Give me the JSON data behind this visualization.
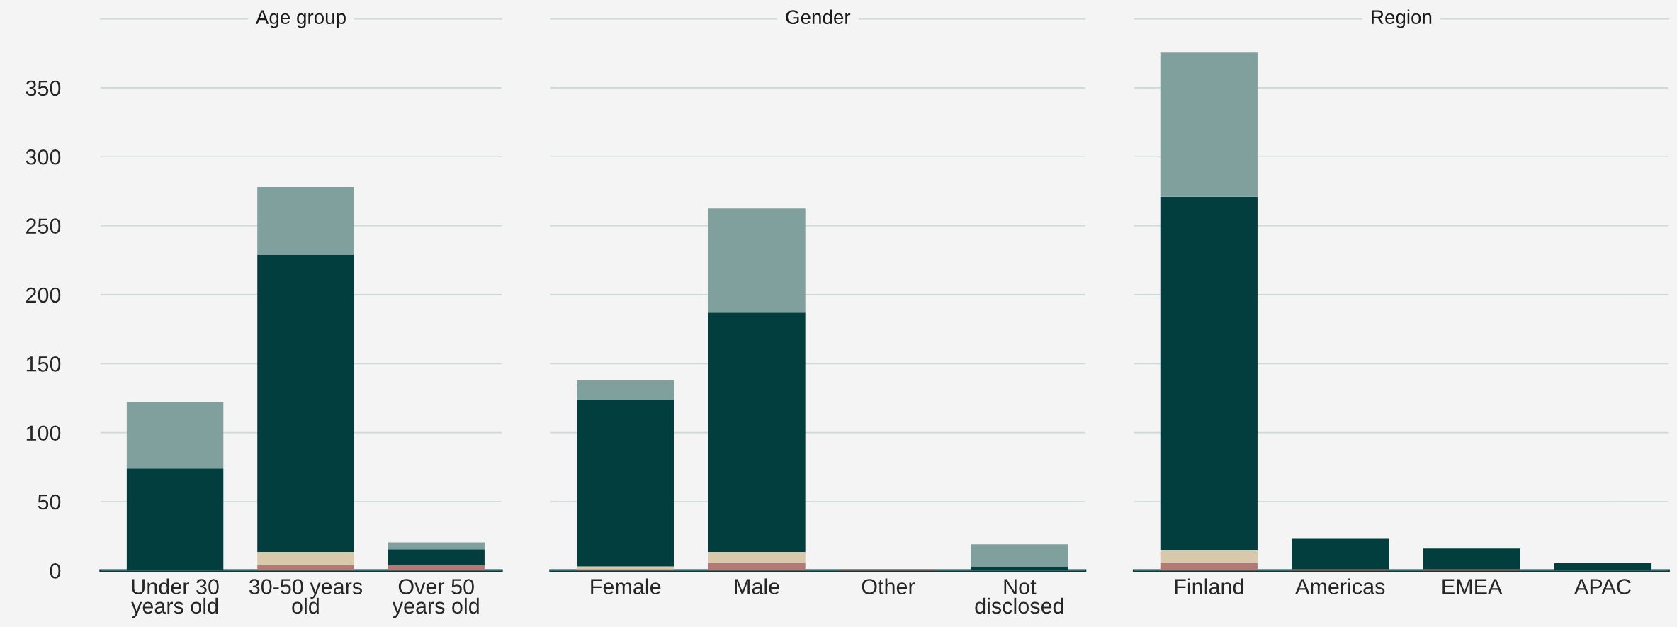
{
  "chart_data": [
    {
      "type": "bar",
      "title": "Age group",
      "categories": [
        "Under 30\nyears old",
        "30-50 years\nold",
        "Over 50\nyears old"
      ],
      "stacked": true,
      "grid": "y",
      "legend": false,
      "ylim": [
        0,
        400
      ],
      "yticks": [
        0,
        50,
        100,
        150,
        200,
        250,
        300,
        350
      ],
      "series": [
        {
          "color": "#b27a74",
          "values": [
            0,
            4,
            4
          ]
        },
        {
          "color": "#d9c9ab",
          "values": [
            0,
            9.5,
            0
          ]
        },
        {
          "color": "#033e3e",
          "values": [
            74,
            215.5,
            11.5
          ]
        },
        {
          "color": "#80a09e",
          "values": [
            48,
            49,
            5
          ]
        }
      ]
    },
    {
      "type": "bar",
      "title": "Gender",
      "categories": [
        "Female",
        "Male",
        "Other",
        "Not\ndisclosed"
      ],
      "stacked": true,
      "grid": "y",
      "legend": false,
      "tick_labels": "x",
      "ylim": [
        0,
        400
      ],
      "yticks": [
        0,
        50,
        100,
        150,
        200,
        250,
        300,
        350
      ],
      "series": [
        {
          "color": "#b27a74",
          "values": [
            1,
            6,
            1,
            0
          ]
        },
        {
          "color": "#d9c9ab",
          "values": [
            2,
            7.5,
            0,
            0
          ]
        },
        {
          "color": "#033e3e",
          "values": [
            121,
            173.5,
            0,
            3
          ]
        },
        {
          "color": "#80a09e",
          "values": [
            14,
            75.5,
            0,
            16
          ]
        }
      ]
    },
    {
      "type": "bar",
      "title": "Region",
      "categories": [
        "Finland",
        "Americas",
        "EMEA",
        "APAC"
      ],
      "stacked": true,
      "grid": "y",
      "legend": false,
      "tick_labels": "x",
      "ylim": [
        0,
        400
      ],
      "yticks": [
        0,
        50,
        100,
        150,
        200,
        250,
        300,
        350
      ],
      "series": [
        {
          "color": "#b27a74",
          "values": [
            6,
            1,
            1,
            0
          ]
        },
        {
          "color": "#d9c9ab",
          "values": [
            8.5,
            0,
            0,
            0
          ]
        },
        {
          "color": "#033e3e",
          "values": [
            256.5,
            22,
            15,
            5.5
          ]
        },
        {
          "color": "#80a09e",
          "values": [
            104.5,
            0,
            0,
            0
          ]
        }
      ]
    }
  ]
}
